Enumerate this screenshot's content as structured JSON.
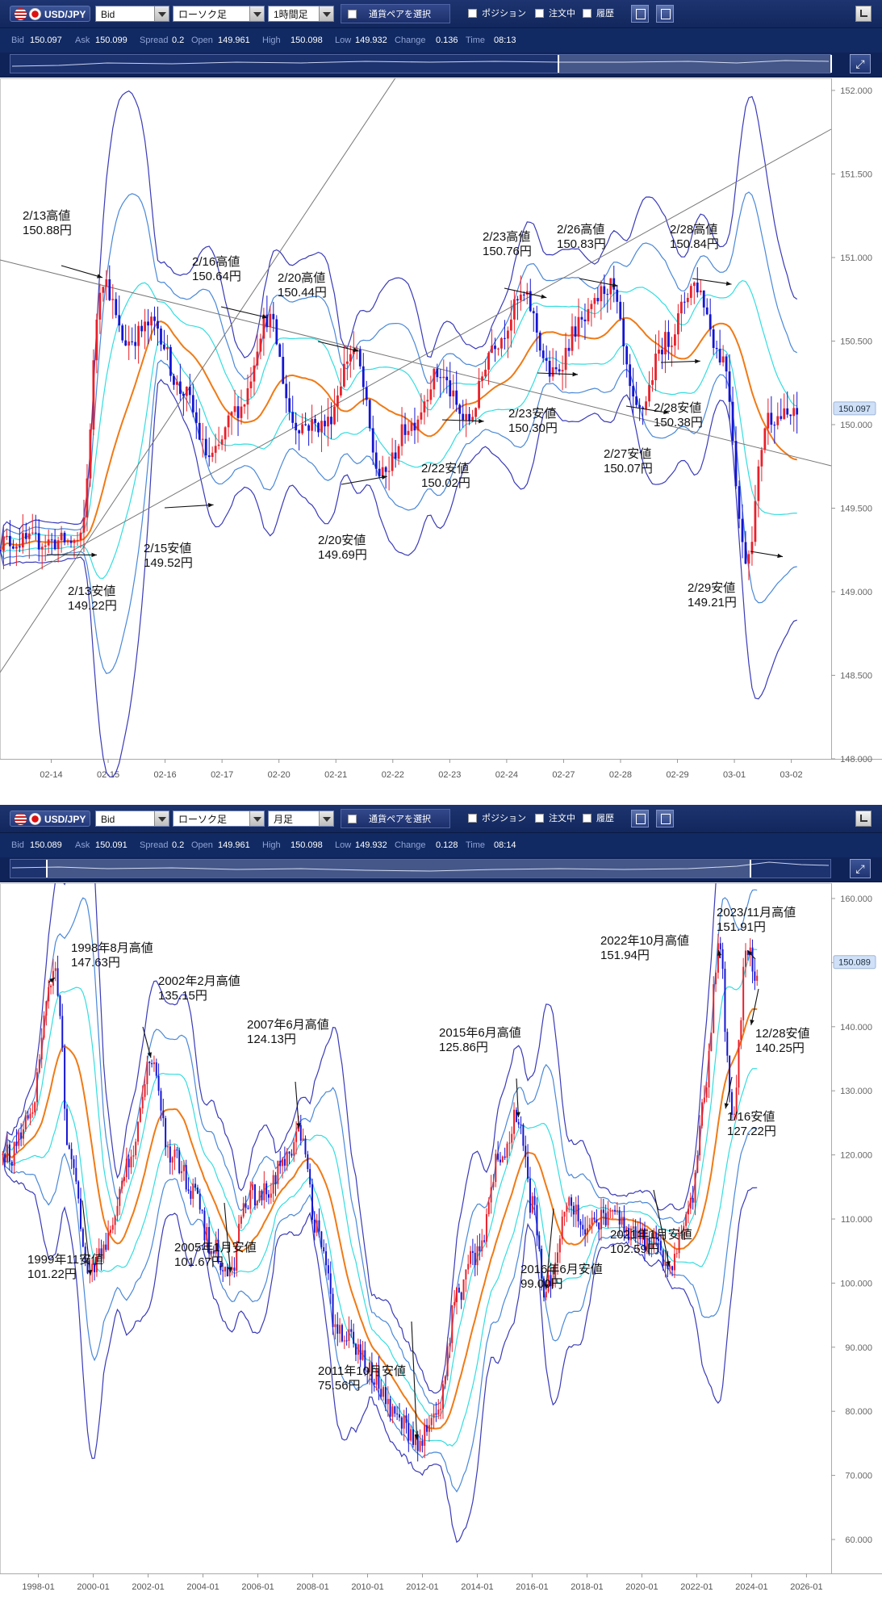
{
  "panels": [
    {
      "toolbar": {
        "pair": "USD/JPY",
        "price_type": "Bid",
        "chart_type": "ローソク足",
        "timeframe": "1時間足",
        "select_pair": "通貨ペアを選択",
        "position_label": "ポジション",
        "orders_label": "注文中",
        "history_label": "履歴"
      },
      "quote": {
        "bid_label": "Bid",
        "bid": "150.097",
        "ask_label": "Ask",
        "ask": "150.099",
        "spread_label": "Spread",
        "spread": "0.2",
        "open_label": "Open",
        "open": "149.961",
        "high_label": "High",
        "high": "150.098",
        "low_label": "Low",
        "low": "149.932",
        "change_label": "Change",
        "change": "0.136",
        "time_label": "Time",
        "time": "08:13"
      },
      "current_price_label": "150.097",
      "colors": {
        "up": "#e8202a",
        "down": "#1414d2",
        "ma": "#f07a16",
        "band1": "#33dde0",
        "band2": "#4a88d8",
        "band3": "#3a3ab8"
      }
    },
    {
      "toolbar": {
        "pair": "USD/JPY",
        "price_type": "Bid",
        "chart_type": "ローソク足",
        "timeframe": "月足",
        "select_pair": "通貨ペアを選択",
        "position_label": "ポジション",
        "orders_label": "注文中",
        "history_label": "履歴"
      },
      "quote": {
        "bid_label": "Bid",
        "bid": "150.089",
        "ask_label": "Ask",
        "ask": "150.091",
        "spread_label": "Spread",
        "spread": "0.2",
        "open_label": "Open",
        "open": "149.961",
        "high_label": "High",
        "high": "150.098",
        "low_label": "Low",
        "low": "149.932",
        "change_label": "Change",
        "change": "0.128",
        "time_label": "Time",
        "time": "08:14"
      },
      "current_price_label": "150.089",
      "colors": {
        "up": "#e8202a",
        "down": "#1414d2",
        "ma": "#f07a16",
        "band1": "#33dde0",
        "band2": "#4a88d8",
        "band3": "#3a3ab8"
      }
    }
  ],
  "chart_data": [
    {
      "type": "candlestick",
      "title": "",
      "xlabel": "",
      "ylabel": "",
      "ylim": [
        148.0,
        152.1
      ],
      "x_ticks": [
        "02-14",
        "02-15",
        "02-16",
        "02-17",
        "02-20",
        "02-21",
        "02-22",
        "02-23",
        "02-24",
        "02-27",
        "02-28",
        "02-29",
        "03-01",
        "03-02"
      ],
      "y_ticks": [
        "148.000",
        "148.500",
        "149.000",
        "149.500",
        "150.000",
        "150.500",
        "151.000",
        "151.500",
        "152.000"
      ],
      "series": [
        {
          "name": "",
          "x": [
            0,
            0.5,
            0.9,
            1.3,
            1.8,
            2.3,
            2.8,
            3.3,
            3.8,
            4.3,
            4.8,
            5.3,
            5.8,
            6.3,
            6.8,
            7.3,
            7.8,
            8.3,
            8.8,
            9.3,
            9.8,
            10.3,
            10.8,
            11.3,
            11.8,
            12.2,
            12.6
          ],
          "y": [
            149.3,
            149.3,
            150.88,
            150.5,
            150.6,
            150.2,
            149.8,
            150.1,
            150.64,
            150.0,
            150.0,
            150.44,
            149.69,
            150.0,
            150.3,
            150.02,
            150.5,
            150.76,
            150.3,
            150.6,
            150.83,
            150.07,
            150.5,
            150.84,
            150.4,
            149.21,
            150.05
          ]
        }
      ],
      "annotations": [
        {
          "label": "2/13高値",
          "value": "150.88円",
          "x": 0.9,
          "y": 150.88
        },
        {
          "label": "2/13安値",
          "value": "149.22円",
          "x": 0.8,
          "y": 149.22
        },
        {
          "label": "2/15安値",
          "value": "149.52円",
          "x": 2.85,
          "y": 149.52
        },
        {
          "label": "2/16高値",
          "value": "150.64円",
          "x": 3.8,
          "y": 150.64
        },
        {
          "label": "2/20高値",
          "value": "150.44円",
          "x": 5.4,
          "y": 150.44
        },
        {
          "label": "2/20安値",
          "value": "149.69円",
          "x": 5.9,
          "y": 149.69
        },
        {
          "label": "2/22安値",
          "value": "150.02円",
          "x": 7.6,
          "y": 150.02
        },
        {
          "label": "2/23高値",
          "value": "150.76円",
          "x": 8.7,
          "y": 150.76
        },
        {
          "label": "2/23安値",
          "value": "150.30円",
          "x": 9.25,
          "y": 150.3
        },
        {
          "label": "2/26高値",
          "value": "150.83円",
          "x": 9.95,
          "y": 150.83
        },
        {
          "label": "2/27安値",
          "value": "150.07円",
          "x": 10.85,
          "y": 150.07
        },
        {
          "label": "2/28高値",
          "value": "150.84円",
          "x": 11.95,
          "y": 150.84
        },
        {
          "label": "2/28安値",
          "value": "150.38円",
          "x": 11.4,
          "y": 150.38
        },
        {
          "label": "2/29安値",
          "value": "149.21円",
          "x": 12.85,
          "y": 149.21
        }
      ]
    },
    {
      "type": "candlestick",
      "title": "",
      "xlabel": "",
      "ylabel": "",
      "ylim": [
        59,
        162
      ],
      "x_ticks": [
        "1998-01",
        "2000-01",
        "2002-01",
        "2004-01",
        "2006-01",
        "2008-01",
        "2010-01",
        "2012-01",
        "2014-01",
        "2016-01",
        "2018-01",
        "2020-01",
        "2022-01",
        "2024-01",
        "2026-01"
      ],
      "y_ticks": [
        "60.000",
        "70.000",
        "80.000",
        "90.000",
        "100.000",
        "110.000",
        "120.000",
        "130.000",
        "140.000",
        "150.000",
        "160.000"
      ],
      "series": [
        {
          "name": "",
          "x": [
            1997.0,
            1997.6,
            1998.6,
            1999.2,
            1999.9,
            2000.5,
            2001.3,
            2002.1,
            2002.8,
            2003.6,
            2004.3,
            2005.0,
            2005.6,
            2006.3,
            2007.0,
            2007.5,
            2008.2,
            2008.9,
            2009.6,
            2010.3,
            2011.0,
            2011.8,
            2012.5,
            2013.3,
            2014.0,
            2014.8,
            2015.5,
            2016.0,
            2016.5,
            2017.3,
            2018.0,
            2018.8,
            2019.6,
            2020.3,
            2021.0,
            2021.8,
            2022.3,
            2022.8,
            2023.3,
            2023.85,
            2024.1
          ],
          "y": [
            120,
            126,
            147.63,
            118,
            101.22,
            107,
            118,
            135.15,
            120,
            115,
            106,
            101.67,
            113,
            115,
            119,
            124.13,
            108,
            93,
            90,
            85,
            80,
            75.56,
            80,
            98,
            105,
            120,
            125.86,
            112,
            99.0,
            112,
            108,
            111,
            108,
            107,
            102.59,
            113,
            131,
            151.94,
            127.22,
            151.91,
            149
          ]
        }
      ],
      "annotations": [
        {
          "label": "1998年8月高値",
          "value": "147.63円",
          "x": 1998.6,
          "y": 147.63
        },
        {
          "label": "1999年11安値",
          "value": "101.22円",
          "x": 1999.9,
          "y": 101.22
        },
        {
          "label": "2002年2月高値",
          "value": "135.15円",
          "x": 2002.1,
          "y": 135.15
        },
        {
          "label": "2005年1月安値",
          "value": "101.67円",
          "x": 2005.0,
          "y": 101.67
        },
        {
          "label": "2007年6月高値",
          "value": "124.13円",
          "x": 2007.5,
          "y": 124.13
        },
        {
          "label": "2011年10月安値",
          "value": "75.56円",
          "x": 2011.8,
          "y": 75.56
        },
        {
          "label": "2015年6月高値",
          "value": "125.86円",
          "x": 2015.5,
          "y": 125.86
        },
        {
          "label": "2016年6月安値",
          "value": "99.00円",
          "x": 2016.5,
          "y": 99.0
        },
        {
          "label": "2021年1月安値",
          "value": "102.59円",
          "x": 2021.0,
          "y": 102.59
        },
        {
          "label": "2022年10月高値",
          "value": "151.94円",
          "x": 2022.8,
          "y": 151.94
        },
        {
          "label": "2023/11月高値",
          "value": "151.91円",
          "x": 2023.85,
          "y": 151.91
        },
        {
          "label": "1/16安値",
          "value": "127.22円",
          "x": 2023.05,
          "y": 127.22
        },
        {
          "label": "12/28安値",
          "value": "140.25円",
          "x": 2023.98,
          "y": 140.25
        }
      ]
    }
  ]
}
